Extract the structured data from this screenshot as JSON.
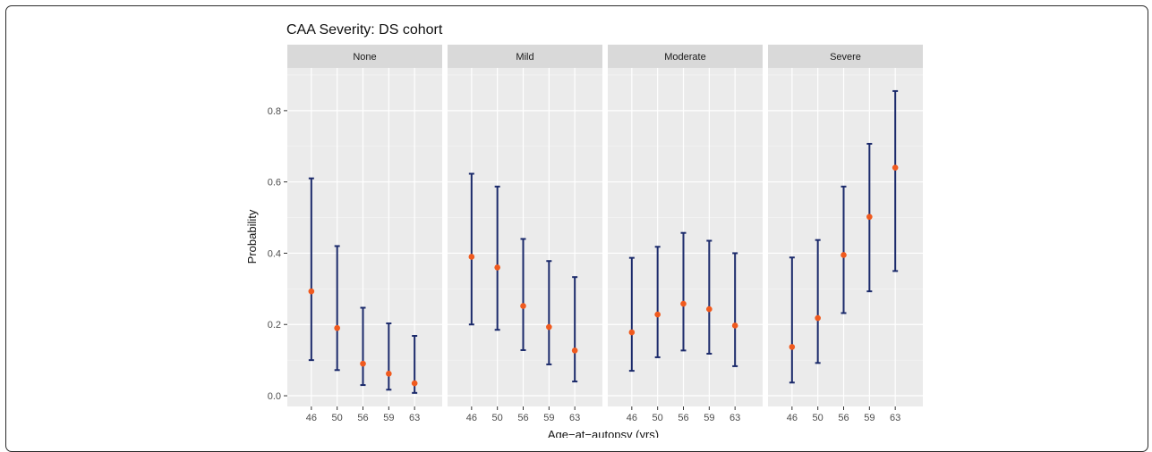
{
  "chart_data": {
    "type": "scatter",
    "title": "CAA Severity: DS cohort",
    "xlabel": "Age−at−autopsy (yrs)",
    "ylabel": "Probability",
    "ylim": [
      -0.03,
      0.92
    ],
    "y_ticks": [
      "0.0",
      "0.2",
      "0.4",
      "0.6",
      "0.8"
    ],
    "y_tick_values": [
      0,
      0.2,
      0.4,
      0.6,
      0.8
    ],
    "categories": [
      "46",
      "50",
      "56",
      "59",
      "63"
    ],
    "grid": true,
    "point_color": "#f05a1e",
    "errorbar_color": "#1b2a6b",
    "panel_bg": "#ebebeb",
    "strip_bg": "#d9d9d9",
    "facets": [
      {
        "label": "None",
        "estimate": [
          0.293,
          0.19,
          0.09,
          0.062,
          0.035
        ],
        "lower": [
          0.1,
          0.072,
          0.03,
          0.017,
          0.008
        ],
        "upper": [
          0.61,
          0.42,
          0.247,
          0.203,
          0.168
        ]
      },
      {
        "label": "Mild",
        "estimate": [
          0.39,
          0.36,
          0.252,
          0.193,
          0.127
        ],
        "lower": [
          0.2,
          0.185,
          0.128,
          0.088,
          0.04
        ],
        "upper": [
          0.623,
          0.587,
          0.44,
          0.378,
          0.333
        ]
      },
      {
        "label": "Moderate",
        "estimate": [
          0.178,
          0.228,
          0.258,
          0.243,
          0.197
        ],
        "lower": [
          0.07,
          0.108,
          0.127,
          0.118,
          0.083
        ],
        "upper": [
          0.387,
          0.418,
          0.457,
          0.435,
          0.4
        ]
      },
      {
        "label": "Severe",
        "estimate": [
          0.137,
          0.218,
          0.395,
          0.502,
          0.64
        ],
        "lower": [
          0.037,
          0.092,
          0.232,
          0.293,
          0.35
        ],
        "upper": [
          0.388,
          0.437,
          0.587,
          0.707,
          0.855
        ]
      }
    ]
  }
}
